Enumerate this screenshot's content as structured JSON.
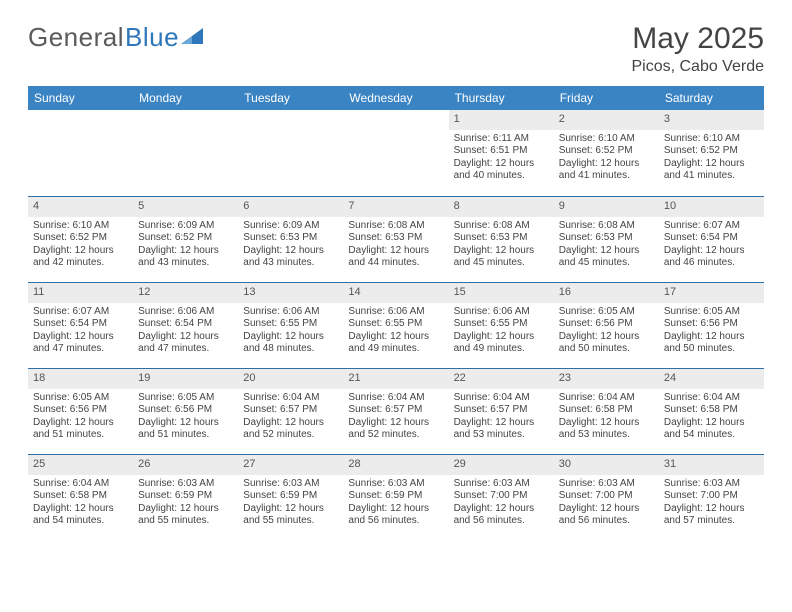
{
  "brand": {
    "part1": "General",
    "part2": "Blue",
    "logo_fill": "#2f77bb"
  },
  "title": "May 2025",
  "location": "Picos, Cabo Verde",
  "colors": {
    "header_bg": "#3b84c4",
    "header_fg": "#ffffff",
    "daynum_bg": "#ececec",
    "row_border": "#2f6fa8",
    "text": "#444444",
    "logo_gray": "#5b5b5b"
  },
  "weekdays": [
    "Sunday",
    "Monday",
    "Tuesday",
    "Wednesday",
    "Thursday",
    "Friday",
    "Saturday"
  ],
  "weeks": [
    [
      null,
      null,
      null,
      null,
      {
        "n": "1",
        "sr": "6:11 AM",
        "ss": "6:51 PM",
        "dl": "12 hours and 40 minutes."
      },
      {
        "n": "2",
        "sr": "6:10 AM",
        "ss": "6:52 PM",
        "dl": "12 hours and 41 minutes."
      },
      {
        "n": "3",
        "sr": "6:10 AM",
        "ss": "6:52 PM",
        "dl": "12 hours and 41 minutes."
      }
    ],
    [
      {
        "n": "4",
        "sr": "6:10 AM",
        "ss": "6:52 PM",
        "dl": "12 hours and 42 minutes."
      },
      {
        "n": "5",
        "sr": "6:09 AM",
        "ss": "6:52 PM",
        "dl": "12 hours and 43 minutes."
      },
      {
        "n": "6",
        "sr": "6:09 AM",
        "ss": "6:53 PM",
        "dl": "12 hours and 43 minutes."
      },
      {
        "n": "7",
        "sr": "6:08 AM",
        "ss": "6:53 PM",
        "dl": "12 hours and 44 minutes."
      },
      {
        "n": "8",
        "sr": "6:08 AM",
        "ss": "6:53 PM",
        "dl": "12 hours and 45 minutes."
      },
      {
        "n": "9",
        "sr": "6:08 AM",
        "ss": "6:53 PM",
        "dl": "12 hours and 45 minutes."
      },
      {
        "n": "10",
        "sr": "6:07 AM",
        "ss": "6:54 PM",
        "dl": "12 hours and 46 minutes."
      }
    ],
    [
      {
        "n": "11",
        "sr": "6:07 AM",
        "ss": "6:54 PM",
        "dl": "12 hours and 47 minutes."
      },
      {
        "n": "12",
        "sr": "6:06 AM",
        "ss": "6:54 PM",
        "dl": "12 hours and 47 minutes."
      },
      {
        "n": "13",
        "sr": "6:06 AM",
        "ss": "6:55 PM",
        "dl": "12 hours and 48 minutes."
      },
      {
        "n": "14",
        "sr": "6:06 AM",
        "ss": "6:55 PM",
        "dl": "12 hours and 49 minutes."
      },
      {
        "n": "15",
        "sr": "6:06 AM",
        "ss": "6:55 PM",
        "dl": "12 hours and 49 minutes."
      },
      {
        "n": "16",
        "sr": "6:05 AM",
        "ss": "6:56 PM",
        "dl": "12 hours and 50 minutes."
      },
      {
        "n": "17",
        "sr": "6:05 AM",
        "ss": "6:56 PM",
        "dl": "12 hours and 50 minutes."
      }
    ],
    [
      {
        "n": "18",
        "sr": "6:05 AM",
        "ss": "6:56 PM",
        "dl": "12 hours and 51 minutes."
      },
      {
        "n": "19",
        "sr": "6:05 AM",
        "ss": "6:56 PM",
        "dl": "12 hours and 51 minutes."
      },
      {
        "n": "20",
        "sr": "6:04 AM",
        "ss": "6:57 PM",
        "dl": "12 hours and 52 minutes."
      },
      {
        "n": "21",
        "sr": "6:04 AM",
        "ss": "6:57 PM",
        "dl": "12 hours and 52 minutes."
      },
      {
        "n": "22",
        "sr": "6:04 AM",
        "ss": "6:57 PM",
        "dl": "12 hours and 53 minutes."
      },
      {
        "n": "23",
        "sr": "6:04 AM",
        "ss": "6:58 PM",
        "dl": "12 hours and 53 minutes."
      },
      {
        "n": "24",
        "sr": "6:04 AM",
        "ss": "6:58 PM",
        "dl": "12 hours and 54 minutes."
      }
    ],
    [
      {
        "n": "25",
        "sr": "6:04 AM",
        "ss": "6:58 PM",
        "dl": "12 hours and 54 minutes."
      },
      {
        "n": "26",
        "sr": "6:03 AM",
        "ss": "6:59 PM",
        "dl": "12 hours and 55 minutes."
      },
      {
        "n": "27",
        "sr": "6:03 AM",
        "ss": "6:59 PM",
        "dl": "12 hours and 55 minutes."
      },
      {
        "n": "28",
        "sr": "6:03 AM",
        "ss": "6:59 PM",
        "dl": "12 hours and 56 minutes."
      },
      {
        "n": "29",
        "sr": "6:03 AM",
        "ss": "7:00 PM",
        "dl": "12 hours and 56 minutes."
      },
      {
        "n": "30",
        "sr": "6:03 AM",
        "ss": "7:00 PM",
        "dl": "12 hours and 56 minutes."
      },
      {
        "n": "31",
        "sr": "6:03 AM",
        "ss": "7:00 PM",
        "dl": "12 hours and 57 minutes."
      }
    ]
  ],
  "labels": {
    "sunrise": "Sunrise: ",
    "sunset": "Sunset: ",
    "daylight": "Daylight: "
  }
}
